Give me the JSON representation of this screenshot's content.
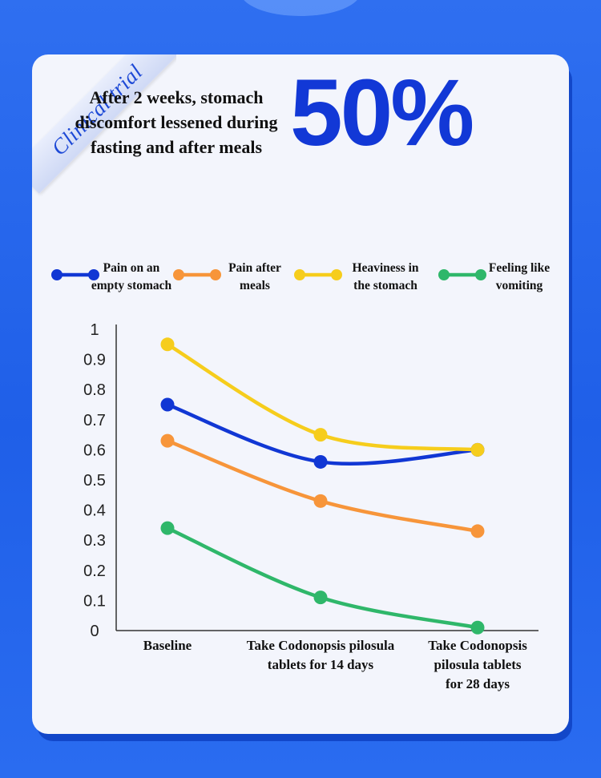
{
  "badge": "Clinical trial",
  "headline": "After 2 weeks, stomach discomfort lessened during fasting and after meals",
  "highlight": "50%",
  "colors": {
    "background": "#2463ed",
    "card": "#f3f5fc",
    "highlight": "#1238d6"
  },
  "chart_data": {
    "type": "line",
    "categories": [
      [
        "Baseline"
      ],
      [
        "Take Codonopsis pilosula",
        "tablets for 14 days"
      ],
      [
        "Take Codonopsis",
        "pilosula tablets",
        "for 28 days"
      ]
    ],
    "yticks": [
      "0",
      "0.1",
      "0.2",
      "0.3",
      "0.4",
      "0.5",
      "0.6",
      "0.7",
      "0.8",
      "0.9",
      "1"
    ],
    "ylim": [
      0,
      1
    ],
    "legend_position": "top",
    "series": [
      {
        "name": [
          "Pain on an",
          "empty stomach"
        ],
        "color": "#1137d4",
        "values": [
          0.75,
          0.56,
          0.6
        ]
      },
      {
        "name": [
          "Pain after",
          "meals"
        ],
        "color": "#f7953a",
        "values": [
          0.63,
          0.43,
          0.33
        ]
      },
      {
        "name": [
          "Heaviness in",
          "the stomach"
        ],
        "color": "#f6cd1c",
        "values": [
          0.95,
          0.65,
          0.6
        ]
      },
      {
        "name": [
          "Feeling like",
          "vomiting"
        ],
        "color": "#2fb76a",
        "values": [
          0.34,
          0.11,
          0.01
        ]
      }
    ]
  }
}
